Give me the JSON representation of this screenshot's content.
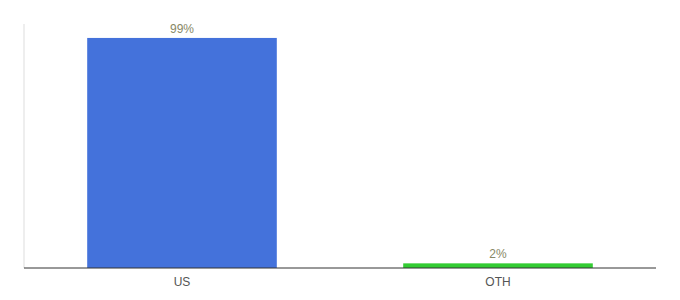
{
  "chart_data": {
    "type": "bar",
    "categories": [
      "US",
      "OTH"
    ],
    "values": [
      99,
      2
    ],
    "value_labels": [
      "99%",
      "2%"
    ],
    "colors": [
      "#4472db",
      "#33cc33"
    ],
    "ylim": [
      0,
      105
    ],
    "data_labels": true,
    "tick_labels": "x",
    "grid": false
  }
}
